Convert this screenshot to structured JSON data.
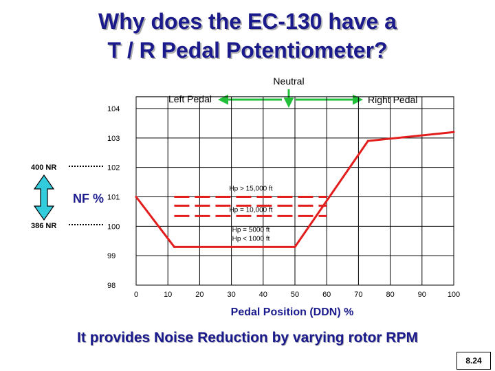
{
  "slide": {
    "title_line1": "Why does the EC-130 have a",
    "title_line2": "T / R Pedal Potentiometer?",
    "subtitle": "It provides Noise Reduction by varying rotor RPM",
    "slide_number": "8.24"
  },
  "pedal_labels": {
    "neutral": "Neutral",
    "left": "Left Pedal",
    "right": "Right Pedal"
  },
  "nr_labels": {
    "upper": "400 NR",
    "lower": "386 NR",
    "nf": "NF %"
  },
  "colors": {
    "title": "#1a1a8c",
    "line": "#e31c1c",
    "arrow_green": "#22c03a",
    "double_arrow": "#33ccdd"
  },
  "chart_data": {
    "type": "line",
    "xlabel": "Pedal Position (DDN) %",
    "ylabel": "NF %",
    "x_ticks": [
      "0",
      "10",
      "20",
      "30",
      "40",
      "50",
      "60",
      "70",
      "80",
      "90",
      "100"
    ],
    "y_ticks": [
      "104",
      "103",
      "102",
      "101",
      "100",
      "99",
      "98"
    ],
    "xlim": [
      0,
      100
    ],
    "ylim": [
      98,
      104.4
    ],
    "grid": true,
    "series": [
      {
        "name": "",
        "style": "solid",
        "x": [
          0,
          12,
          50,
          73,
          100
        ],
        "y": [
          101,
          99.3,
          99.3,
          102.9,
          103.2
        ]
      }
    ],
    "annotations": [
      {
        "text": "Hp > 15,000 ft",
        "y": 101.0
      },
      {
        "text": "Hp = 10,000 ft",
        "y": 100.7
      },
      {
        "text": "Hp = 5000 ft",
        "y": 100.35
      },
      {
        "text": "Hp < 1000 ft",
        "y": 99.3
      }
    ],
    "dashed_levels": [
      101.0,
      100.7,
      100.35
    ]
  }
}
